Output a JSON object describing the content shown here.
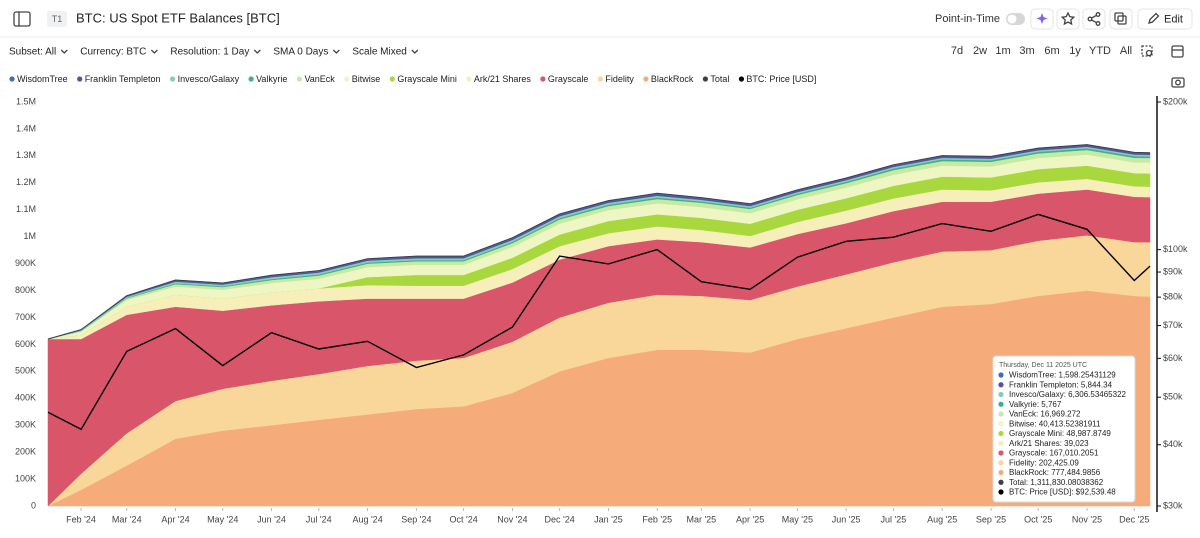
{
  "header": {
    "tab": "T1",
    "title": "BTC: US Spot ETF Balances [BTC]",
    "point_in_time": "Point-in-Time",
    "edit": "Edit"
  },
  "toolbar": {
    "filters": [
      "Subset: All",
      "Currency: BTC",
      "Resolution: 1 Day",
      "SMA 0 Days",
      "Scale Mixed"
    ],
    "ranges": [
      "7d",
      "2w",
      "1m",
      "3m",
      "6m",
      "1y",
      "YTD",
      "All"
    ]
  },
  "chart_data": {
    "type": "stacked-area",
    "x": [
      "2024-01-11",
      "2024-02-01",
      "2024-03-01",
      "2024-04-01",
      "2024-05-01",
      "2024-06-01",
      "2024-07-01",
      "2024-08-01",
      "2024-09-01",
      "2024-10-01",
      "2024-11-01",
      "2024-12-01",
      "2025-01-01",
      "2025-02-01",
      "2025-03-01",
      "2025-04-01",
      "2025-05-01",
      "2025-06-01",
      "2025-07-01",
      "2025-08-01",
      "2025-09-01",
      "2025-10-01",
      "2025-11-01",
      "2025-12-01",
      "2025-12-11"
    ],
    "series": [
      {
        "name": "WisdomTree",
        "color": "#3b6fb6",
        "kind": "area",
        "values": [
          0,
          1000,
          2000,
          3000,
          3000,
          3000,
          3000,
          3000,
          3000,
          3000,
          3000,
          3000,
          3000,
          3000,
          2000,
          2000,
          2000,
          2000,
          2000,
          2000,
          2000,
          2000,
          2000,
          2000,
          1598.25431129
        ]
      },
      {
        "name": "Franklin Templeton",
        "color": "#5b4fa3",
        "kind": "area",
        "values": [
          0,
          1000,
          2000,
          3000,
          3000,
          4000,
          4000,
          4000,
          5000,
          5000,
          5000,
          5000,
          5000,
          6000,
          6000,
          6000,
          6000,
          6000,
          6000,
          6000,
          6000,
          6000,
          6000,
          6000,
          5844.34
        ]
      },
      {
        "name": "Invesco/Galaxy",
        "color": "#86cdb5",
        "kind": "area",
        "values": [
          0,
          2000,
          4000,
          6000,
          6000,
          7000,
          7000,
          7000,
          7000,
          7000,
          7000,
          7000,
          7000,
          7000,
          6000,
          6000,
          6000,
          6000,
          6000,
          6000,
          6000,
          6000,
          6000,
          6000,
          6306.53465322
        ]
      },
      {
        "name": "Valkyrie",
        "color": "#3fae8f",
        "kind": "area",
        "values": [
          0,
          1000,
          2000,
          3000,
          3000,
          4000,
          4000,
          4000,
          4000,
          4000,
          5000,
          5000,
          5000,
          5000,
          5000,
          5000,
          5000,
          5000,
          6000,
          6000,
          6000,
          6000,
          6000,
          6000,
          5767
        ]
      },
      {
        "name": "VanEck",
        "color": "#c6e9a4",
        "kind": "area",
        "values": [
          0,
          3000,
          6000,
          9000,
          10000,
          11000,
          12000,
          13000,
          13000,
          13000,
          14000,
          15000,
          15000,
          16000,
          16000,
          16000,
          16000,
          16000,
          17000,
          17000,
          17000,
          17000,
          17000,
          17000,
          16969.272
        ]
      },
      {
        "name": "Bitwise",
        "color": "#eef6c4",
        "kind": "area",
        "values": [
          0,
          12000,
          25000,
          30000,
          33000,
          35000,
          36000,
          37000,
          38000,
          38000,
          40000,
          41000,
          41000,
          41000,
          40000,
          39000,
          39000,
          40000,
          41000,
          41000,
          41000,
          41000,
          41000,
          40000,
          40413.52381911
        ]
      },
      {
        "name": "Grayscale Mini",
        "color": "#a9d83e",
        "kind": "area",
        "values": [
          0,
          0,
          0,
          0,
          0,
          0,
          0,
          30000,
          40000,
          40000,
          42000,
          43000,
          45000,
          45000,
          45000,
          45000,
          45000,
          46000,
          47000,
          48000,
          48000,
          49000,
          49000,
          49000,
          48987.8749
        ]
      },
      {
        "name": "Ark/21 Shares",
        "color": "#f6efb9",
        "kind": "area",
        "values": [
          0,
          15000,
          30000,
          45000,
          45000,
          48000,
          48000,
          50000,
          48000,
          48000,
          50000,
          50000,
          48000,
          48000,
          45000,
          43000,
          45000,
          47000,
          47000,
          45000,
          42000,
          42000,
          40000,
          39000,
          39023
        ]
      },
      {
        "name": "Grayscale",
        "color": "#d9566a",
        "kind": "area",
        "values": [
          620000,
          500000,
          440000,
          350000,
          290000,
          280000,
          270000,
          250000,
          230000,
          220000,
          220000,
          215000,
          210000,
          205000,
          200000,
          195000,
          195000,
          190000,
          190000,
          185000,
          180000,
          175000,
          170000,
          168000,
          167010.2051
        ]
      },
      {
        "name": "Fidelity",
        "color": "#f9d79b",
        "kind": "area",
        "values": [
          0,
          60000,
          120000,
          140000,
          155000,
          165000,
          170000,
          180000,
          180000,
          180000,
          190000,
          200000,
          205000,
          205000,
          200000,
          195000,
          195000,
          200000,
          205000,
          205000,
          200000,
          205000,
          205000,
          200000,
          202425.09
        ]
      },
      {
        "name": "BlackRock",
        "color": "#f6ab7b",
        "kind": "area",
        "values": [
          0,
          60000,
          150000,
          250000,
          280000,
          300000,
          320000,
          340000,
          360000,
          370000,
          420000,
          500000,
          550000,
          580000,
          580000,
          570000,
          620000,
          660000,
          700000,
          740000,
          750000,
          780000,
          800000,
          780000,
          777484.9856
        ]
      },
      {
        "name": "Total",
        "color": "#3a3f4b",
        "kind": "line",
        "values": [
          620000,
          655000,
          781000,
          839000,
          828000,
          857000,
          874000,
          918000,
          928000,
          928000,
          996000,
          1084000,
          1134000,
          1161000,
          1145000,
          1122000,
          1174000,
          1218000,
          1267000,
          1301000,
          1298000,
          1329000,
          1342000,
          1313000,
          1311830.08038362
        ]
      },
      {
        "name": "BTC: Price [USD]",
        "color": "#000000",
        "kind": "line",
        "axis": "y2",
        "values": [
          46600,
          43000,
          62000,
          69000,
          58000,
          67700,
          62700,
          65000,
          57500,
          61000,
          69500,
          97000,
          93500,
          100000,
          86000,
          83000,
          96500,
          104000,
          106000,
          113000,
          109000,
          118000,
          110000,
          86500,
          92539.48
        ]
      }
    ],
    "ylim": [
      0,
      1500000
    ],
    "yticks": [
      0,
      {
        "value": 100000,
        "label": "100K"
      },
      {
        "value": 200000,
        "label": "200K"
      },
      {
        "value": 300000,
        "label": "300K"
      },
      {
        "value": 400000,
        "label": "400K"
      },
      {
        "value": 500000,
        "label": "500K"
      },
      {
        "value": 600000,
        "label": "600K"
      },
      {
        "value": 700000,
        "label": "700K"
      },
      {
        "value": 800000,
        "label": "800K"
      },
      {
        "value": 900000,
        "label": "900K"
      },
      {
        "value": 1000000,
        "label": "1M"
      },
      {
        "value": 1100000,
        "label": "1.1M"
      },
      {
        "value": 1200000,
        "label": "1.2M"
      },
      {
        "value": 1300000,
        "label": "1.3M"
      },
      {
        "value": 1400000,
        "label": "1.4M"
      },
      {
        "value": 1500000,
        "label": "1.5M"
      }
    ],
    "y2lim": [
      30000,
      200000
    ],
    "y2log": true,
    "y2ticks": [
      {
        "value": 30000,
        "label": "$30k"
      },
      {
        "value": 40000,
        "label": "$40k"
      },
      {
        "value": 50000,
        "label": "$50k"
      },
      {
        "value": 60000,
        "label": "$60k"
      },
      {
        "value": 70000,
        "label": "$70k"
      },
      {
        "value": 80000,
        "label": "$80k"
      },
      {
        "value": 90000,
        "label": "$90k"
      },
      {
        "value": 100000,
        "label": "$100k"
      },
      {
        "value": 200000,
        "label": "$200k"
      }
    ],
    "xticks": [
      {
        "value": "2024-02-01",
        "label": "Feb '24"
      },
      {
        "value": "2024-03-01",
        "label": "Mar '24"
      },
      {
        "value": "2024-04-01",
        "label": "Apr '24"
      },
      {
        "value": "2024-05-01",
        "label": "May '24"
      },
      {
        "value": "2024-06-01",
        "label": "Jun '24"
      },
      {
        "value": "2024-07-01",
        "label": "Jul '24"
      },
      {
        "value": "2024-08-01",
        "label": "Aug '24"
      },
      {
        "value": "2024-09-01",
        "label": "Sep '24"
      },
      {
        "value": "2024-10-01",
        "label": "Oct '24"
      },
      {
        "value": "2024-11-01",
        "label": "Nov '24"
      },
      {
        "value": "2024-12-01",
        "label": "Dec '24"
      },
      {
        "value": "2025-01-01",
        "label": "Jan '25"
      },
      {
        "value": "2025-02-01",
        "label": "Feb '25"
      },
      {
        "value": "2025-03-01",
        "label": "Mar '25"
      },
      {
        "value": "2025-04-01",
        "label": "Apr '25"
      },
      {
        "value": "2025-05-01",
        "label": "May '25"
      },
      {
        "value": "2025-06-01",
        "label": "Jun '25"
      },
      {
        "value": "2025-07-01",
        "label": "Jul '25"
      },
      {
        "value": "2025-08-01",
        "label": "Aug '25"
      },
      {
        "value": "2025-09-01",
        "label": "Sep '25"
      },
      {
        "value": "2025-10-01",
        "label": "Oct '25"
      },
      {
        "value": "2025-11-01",
        "label": "Nov '25"
      },
      {
        "value": "2025-12-01",
        "label": "Dec '25"
      }
    ],
    "tooltip": {
      "title": "Thursday, Dec 11 2025 UTC",
      "items": [
        "WisdomTree: 1,598.25431129",
        "Franklin Templeton: 5,844.34",
        "Invesco/Galaxy: 6,306.53465322",
        "Valkyrie: 5,767",
        "VanEck: 16,969.272",
        "Bitwise: 40,413.52381911",
        "Grayscale Mini: 48,987.8749",
        "Ark/21 Shares: 39,023",
        "Grayscale: 167,010.2051",
        "Fidelity: 202,425.09",
        "BlackRock: 777,484.9856",
        "Total: 1,311,830.08038362",
        "BTC: Price [USD]: $92,539.48"
      ]
    }
  }
}
